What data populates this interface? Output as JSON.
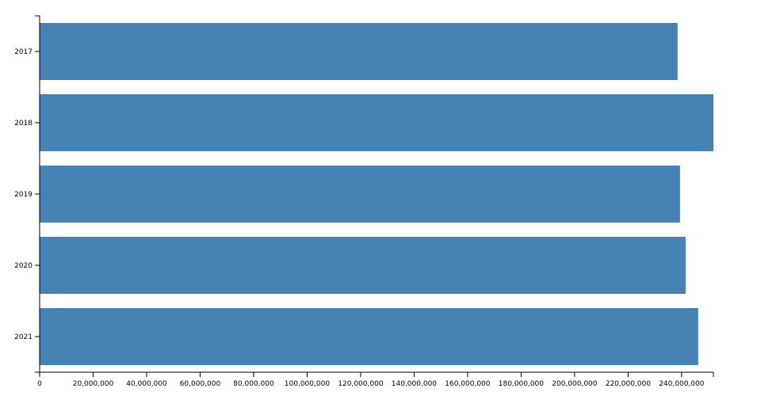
{
  "chart_data": {
    "type": "barh",
    "categories": [
      "2017",
      "2018",
      "2019",
      "2020",
      "2021"
    ],
    "values": [
      238500000,
      251900000,
      239400000,
      241500000,
      246200000
    ],
    "color": "#4682b4",
    "xlim": [
      0,
      251900000
    ],
    "xticks": [
      0,
      {
        "value": 20000000,
        "label": "20,000,000"
      },
      {
        "value": 40000000,
        "label": "40,000,000"
      },
      {
        "value": 60000000,
        "label": "60,000,000"
      },
      {
        "value": 80000000,
        "label": "80,000,000"
      },
      {
        "value": 100000000,
        "label": "100,000,000"
      },
      {
        "value": 120000000,
        "label": "120,000,000"
      },
      {
        "value": 140000000,
        "label": "140,000,000"
      },
      {
        "value": 160000000,
        "label": "160,000,000"
      },
      {
        "value": 180000000,
        "label": "180,000,000"
      },
      {
        "value": 200000000,
        "label": "200,000,000"
      },
      {
        "value": 220000000,
        "label": "220,000,000"
      },
      {
        "value": 240000000,
        "label": "240,000,000"
      }
    ]
  }
}
